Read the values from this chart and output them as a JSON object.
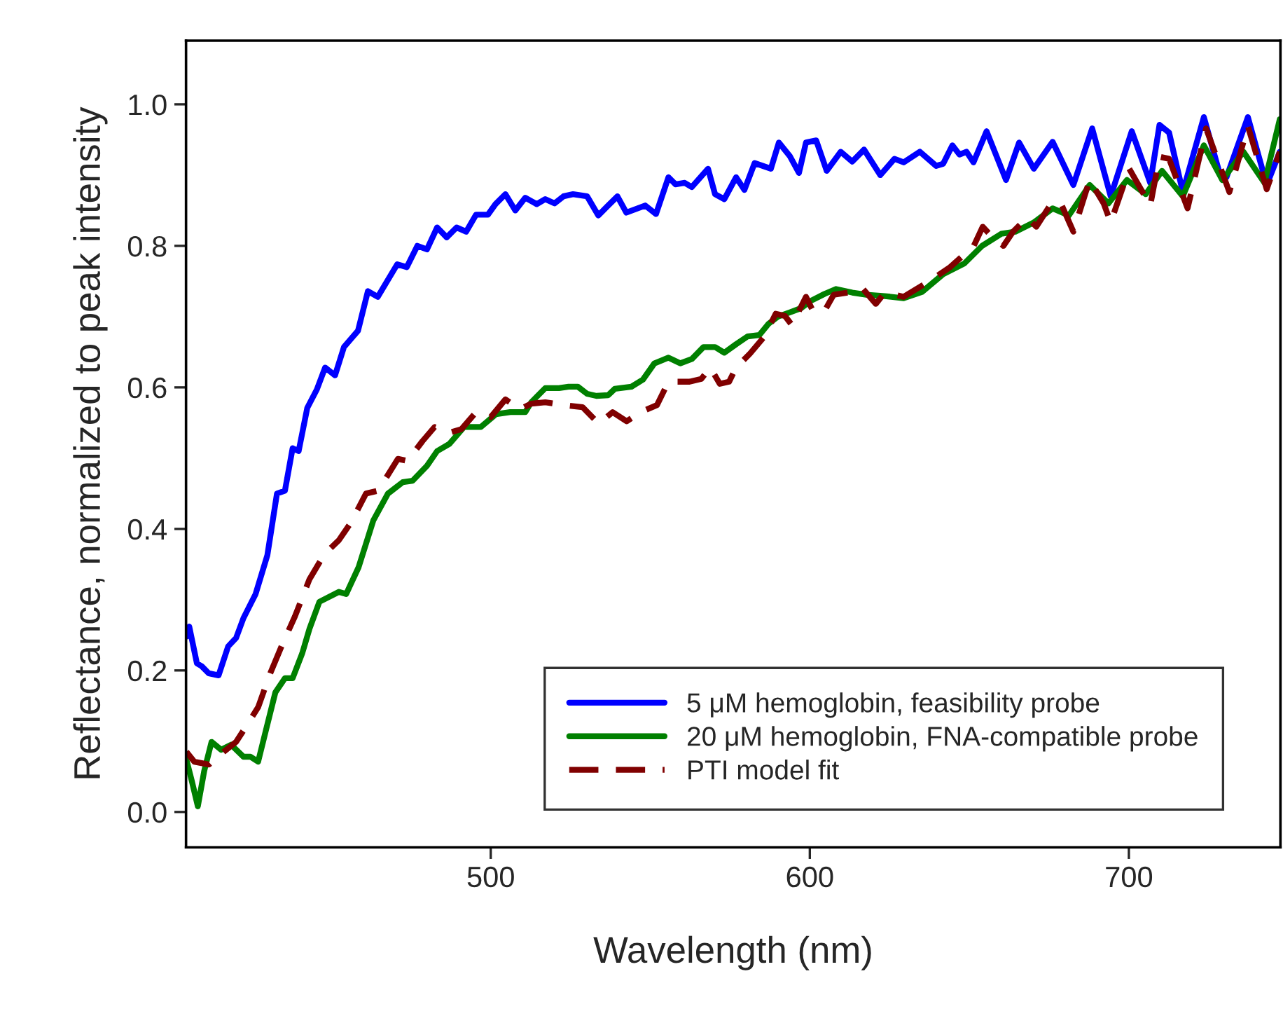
{
  "chart_data": {
    "type": "line",
    "xlabel": "Wavelength (nm)",
    "ylabel": "Reflectance, normalized to peak intensity",
    "xlim": [
      404.5,
      747.5
    ],
    "ylim": [
      -0.05,
      1.09
    ],
    "xticks": [
      500,
      600,
      700
    ],
    "yticks": [
      {
        "value": 0,
        "label": "0.0"
      },
      {
        "value": 0.2,
        "label": "0.2"
      },
      {
        "value": 0.4,
        "label": "0.4"
      },
      {
        "value": 0.6,
        "label": "0.6"
      },
      {
        "value": 0.8,
        "label": "0.8"
      },
      {
        "value": 1.0,
        "label": "1.0"
      }
    ],
    "grid": false,
    "legend": "bottom right",
    "series": [
      {
        "name": "5 μM hemoglobin, feasibility probe",
        "color": "#0000ff",
        "line_style": "solid",
        "x": [
          404.8,
          405.5,
          407.9,
          409.4,
          411.6,
          414.7,
          417.7,
          420.2,
          422.5,
          426.3,
          430,
          433,
          435.5,
          437.9,
          439.8,
          442.5,
          445.5,
          448.1,
          451.2,
          454,
          458.4,
          461.5,
          464.6,
          470.7,
          473.7,
          477,
          480,
          483.2,
          486.2,
          489.3,
          492.3,
          495.4,
          499.1,
          501.5,
          504.6,
          507.7,
          510.8,
          514.4,
          517.1,
          520,
          522.8,
          525.8,
          530.2,
          533.7,
          536.8,
          539.7,
          542.5,
          548.4,
          551.8,
          555.7,
          557.9,
          560.8,
          563,
          568.1,
          570.3,
          573.2,
          576.9,
          579.5,
          582.7,
          587.8,
          590.3,
          593.7,
          596.6,
          598.8,
          602,
          605.3,
          609.7,
          613.3,
          617,
          622.1,
          626.5,
          629.4,
          634.5,
          639.6,
          641.8,
          644.7,
          646.9,
          649.1,
          651.3,
          655.4,
          661.5,
          665.6,
          670.2,
          676.1,
          682.6,
          688.5,
          694.3,
          700.9,
          706.7,
          709.6,
          712.6,
          716.9,
          723.5,
          728.6,
          730.6,
          737.3,
          743.2,
          747.3
        ],
        "values": [
          0.248,
          0.262,
          0.21,
          0.206,
          0.196,
          0.193,
          0.234,
          0.246,
          0.274,
          0.308,
          0.363,
          0.45,
          0.454,
          0.514,
          0.51,
          0.571,
          0.597,
          0.628,
          0.617,
          0.657,
          0.68,
          0.736,
          0.728,
          0.774,
          0.77,
          0.8,
          0.795,
          0.826,
          0.812,
          0.826,
          0.82,
          0.844,
          0.844,
          0.859,
          0.873,
          0.85,
          0.868,
          0.859,
          0.866,
          0.86,
          0.87,
          0.873,
          0.87,
          0.843,
          0.857,
          0.87,
          0.847,
          0.857,
          0.845,
          0.897,
          0.887,
          0.889,
          0.883,
          0.909,
          0.873,
          0.866,
          0.897,
          0.879,
          0.917,
          0.909,
          0.946,
          0.927,
          0.903,
          0.946,
          0.949,
          0.906,
          0.933,
          0.919,
          0.936,
          0.9,
          0.923,
          0.918,
          0.933,
          0.913,
          0.916,
          0.942,
          0.929,
          0.933,
          0.918,
          0.962,
          0.893,
          0.946,
          0.909,
          0.947,
          0.886,
          0.966,
          0.87,
          0.962,
          0.889,
          0.971,
          0.96,
          0.876,
          0.982,
          0.9,
          0.897,
          0.982,
          0.886,
          0.933
        ]
      },
      {
        "name": "20 μM hemoglobin, FNA-compatible probe",
        "color": "#008000",
        "line_style": "solid",
        "x": [
          404.6,
          406.3,
          408.2,
          410.2,
          412.5,
          415.5,
          418.6,
          422.5,
          424.7,
          427.1,
          429.4,
          432.5,
          435.5,
          437.9,
          440.9,
          443.2,
          446.3,
          452.4,
          454.7,
          458.6,
          463.2,
          467.8,
          472.4,
          475.5,
          480,
          483.2,
          487,
          491.6,
          496.9,
          501.6,
          506.1,
          510.8,
          512.7,
          517.1,
          521.4,
          524.4,
          527.3,
          530.2,
          533.1,
          536.8,
          538.9,
          544.1,
          547.7,
          551.3,
          555.7,
          559.4,
          563,
          566.7,
          570.3,
          573.2,
          576.9,
          580.5,
          584.2,
          587.1,
          590,
          593.7,
          597.3,
          600.2,
          604.6,
          608.2,
          613.3,
          617.7,
          623.5,
          629.4,
          635.2,
          641.8,
          648.4,
          654,
          660,
          664.4,
          670.2,
          676.1,
          681.2,
          687.7,
          693.6,
          699.4,
          705.3,
          710.4,
          716.9,
          723.5,
          729.3,
          735.9,
          742.5,
          747.3
        ],
        "values": [
          0.074,
          0.044,
          0.008,
          0.058,
          0.099,
          0.088,
          0.095,
          0.078,
          0.078,
          0.071,
          0.113,
          0.169,
          0.189,
          0.189,
          0.224,
          0.259,
          0.297,
          0.311,
          0.308,
          0.346,
          0.412,
          0.45,
          0.466,
          0.468,
          0.489,
          0.51,
          0.52,
          0.544,
          0.544,
          0.562,
          0.565,
          0.565,
          0.579,
          0.599,
          0.599,
          0.601,
          0.601,
          0.591,
          0.588,
          0.589,
          0.598,
          0.601,
          0.611,
          0.634,
          0.642,
          0.634,
          0.64,
          0.657,
          0.657,
          0.649,
          0.661,
          0.672,
          0.674,
          0.69,
          0.7,
          0.706,
          0.712,
          0.722,
          0.732,
          0.739,
          0.734,
          0.731,
          0.729,
          0.726,
          0.735,
          0.76,
          0.775,
          0.8,
          0.817,
          0.82,
          0.833,
          0.853,
          0.843,
          0.886,
          0.86,
          0.893,
          0.873,
          0.906,
          0.87,
          0.942,
          0.893,
          0.933,
          0.889,
          0.979
        ]
      },
      {
        "name": "PTI model fit",
        "color": "#800000",
        "line_style": "dashed",
        "x": [
          404.6,
          407.1,
          411.7,
          416.3,
          420.2,
          423.2,
          427.1,
          430.9,
          434.8,
          438.6,
          443.2,
          447.8,
          452.4,
          456.2,
          460.9,
          464.7,
          470.9,
          473.9,
          478.6,
          482.4,
          487,
          490.8,
          495.4,
          500,
          504.6,
          509.2,
          512.7,
          517.1,
          522.9,
          528.8,
          533.8,
          538.2,
          542.6,
          547,
          552.1,
          555.7,
          562.3,
          566,
          568.8,
          571.8,
          574.7,
          576.9,
          581.3,
          585.6,
          589.3,
          592.2,
          594.4,
          598.8,
          601,
          604.6,
          607.5,
          611.9,
          616.3,
          620.7,
          623.5,
          629.4,
          637.4,
          644,
          651.4,
          654.2,
          657.1,
          660.7,
          663.7,
          668.1,
          671,
          676.1,
          679,
          682.6,
          687.7,
          692.1,
          694.3,
          700.1,
          706.7,
          709.6,
          712.6,
          718.4,
          724.2,
          731.5,
          737.3,
          743.2,
          747.3
        ],
        "values": [
          0.085,
          0.071,
          0.067,
          0.085,
          0.099,
          0.12,
          0.148,
          0.196,
          0.238,
          0.276,
          0.329,
          0.364,
          0.384,
          0.409,
          0.45,
          0.454,
          0.499,
          0.496,
          0.524,
          0.544,
          0.536,
          0.541,
          0.565,
          0.558,
          0.583,
          0.569,
          0.577,
          0.579,
          0.575,
          0.572,
          0.549,
          0.565,
          0.552,
          0.565,
          0.575,
          0.608,
          0.608,
          0.612,
          0.628,
          0.605,
          0.608,
          0.628,
          0.648,
          0.671,
          0.704,
          0.701,
          0.688,
          0.728,
          0.708,
          0.708,
          0.731,
          0.734,
          0.741,
          0.718,
          0.734,
          0.728,
          0.75,
          0.77,
          0.8,
          0.827,
          0.813,
          0.8,
          0.82,
          0.84,
          0.827,
          0.863,
          0.857,
          0.82,
          0.893,
          0.86,
          0.833,
          0.909,
          0.857,
          0.926,
          0.923,
          0.853,
          0.966,
          0.876,
          0.969,
          0.88,
          0.933
        ]
      }
    ]
  }
}
